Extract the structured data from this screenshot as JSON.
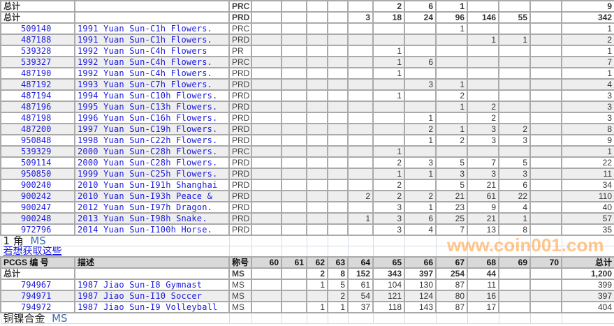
{
  "top_totals": [
    {
      "label": "总计",
      "grade": "PRC",
      "values": [
        "",
        "",
        "",
        "",
        "",
        "2",
        "6",
        "1",
        "",
        "",
        "",
        "9"
      ]
    },
    {
      "label": "总计",
      "grade": "PRD",
      "values": [
        "",
        "",
        "",
        "",
        "3",
        "18",
        "24",
        "96",
        "146",
        "55",
        "",
        "342"
      ]
    }
  ],
  "top_rows": [
    {
      "id": "509140",
      "desc": "1991 Yuan Sun-C1h Flowers.",
      "grade": "PRC",
      "values": [
        "",
        "",
        "",
        "",
        "",
        "",
        "",
        "1",
        "",
        "",
        "",
        "1"
      ]
    },
    {
      "id": "487188",
      "desc": "1991 Yuan Sun-C1h Flowers.",
      "grade": "PRD",
      "values": [
        "",
        "",
        "",
        "",
        "",
        "",
        "",
        "",
        "1",
        "1",
        "",
        "2"
      ]
    },
    {
      "id": "539328",
      "desc": "1992 Yuan Sun-C4h Flowers",
      "grade": "PR",
      "values": [
        "",
        "",
        "",
        "",
        "",
        "1",
        "",
        "",
        "",
        "",
        "",
        "1"
      ]
    },
    {
      "id": "539327",
      "desc": "1992 Yuan Sun-C4h Flowers.",
      "grade": "PRC",
      "values": [
        "",
        "",
        "",
        "",
        "",
        "1",
        "6",
        "",
        "",
        "",
        "",
        "7"
      ]
    },
    {
      "id": "487190",
      "desc": "1992 Yuan Sun-C4h Flowers.",
      "grade": "PRD",
      "values": [
        "",
        "",
        "",
        "",
        "",
        "1",
        "",
        "",
        "",
        "",
        "",
        "1"
      ]
    },
    {
      "id": "487192",
      "desc": "1993 Yuan Sun-C7h Flowers.",
      "grade": "PRD",
      "values": [
        "",
        "",
        "",
        "",
        "",
        "",
        "3",
        "1",
        "",
        "",
        "",
        "4"
      ]
    },
    {
      "id": "487194",
      "desc": "1994 Yuan Sun-C10h Flowers.",
      "grade": "PRD",
      "values": [
        "",
        "",
        "",
        "",
        "",
        "1",
        "",
        "2",
        "",
        "",
        "",
        "3"
      ]
    },
    {
      "id": "487196",
      "desc": "1995 Yuan Sun-C13h Flowers.",
      "grade": "PRD",
      "values": [
        "",
        "",
        "",
        "",
        "",
        "",
        "",
        "1",
        "2",
        "",
        "",
        "3"
      ]
    },
    {
      "id": "487198",
      "desc": "1996 Yuan Sun-C16h Flowers.",
      "grade": "PRD",
      "values": [
        "",
        "",
        "",
        "",
        "",
        "",
        "1",
        "",
        "2",
        "",
        "",
        "3"
      ]
    },
    {
      "id": "487200",
      "desc": "1997 Yuan Sun-C19h Flowers.",
      "grade": "PRD",
      "values": [
        "",
        "",
        "",
        "",
        "",
        "",
        "2",
        "1",
        "3",
        "2",
        "",
        "8"
      ]
    },
    {
      "id": "950848",
      "desc": "1998 Yuan Sun-C22h Flowers.",
      "grade": "PRD",
      "values": [
        "",
        "",
        "",
        "",
        "",
        "",
        "1",
        "2",
        "3",
        "3",
        "",
        "9"
      ]
    },
    {
      "id": "539329",
      "desc": "2000 Yuan Sun-C28h Flowers.",
      "grade": "PRC",
      "values": [
        "",
        "",
        "",
        "",
        "",
        "1",
        "",
        "",
        "",
        "",
        "",
        "1"
      ]
    },
    {
      "id": "509114",
      "desc": "2000 Yuan Sun-C28h Flowers.",
      "grade": "PRD",
      "values": [
        "",
        "",
        "",
        "",
        "",
        "2",
        "3",
        "5",
        "7",
        "5",
        "",
        "22"
      ]
    },
    {
      "id": "950850",
      "desc": "1999 Yuan Sun-C25h Flowers.",
      "grade": "PRD",
      "values": [
        "",
        "",
        "",
        "",
        "",
        "1",
        "1",
        "3",
        "3",
        "3",
        "",
        "11"
      ]
    },
    {
      "id": "900240",
      "desc": "2010 Yuan Sun-I91h Shanghai",
      "grade": "PRD",
      "values": [
        "",
        "",
        "",
        "",
        "",
        "2",
        "",
        "5",
        "21",
        "6",
        "",
        "34"
      ]
    },
    {
      "id": "900242",
      "desc": "2010 Yuan Sun-I93h Peace &",
      "grade": "PRD",
      "values": [
        "",
        "",
        "",
        "",
        "2",
        "2",
        "2",
        "21",
        "61",
        "22",
        "",
        "110"
      ]
    },
    {
      "id": "900247",
      "desc": "2012 Yuan Sun-I97h Dragon.",
      "grade": "PRD",
      "values": [
        "",
        "",
        "",
        "",
        "",
        "3",
        "1",
        "23",
        "9",
        "4",
        "",
        "40"
      ]
    },
    {
      "id": "900248",
      "desc": "2013 Yuan Sun-I98h Snake.",
      "grade": "PRD",
      "values": [
        "",
        "",
        "",
        "",
        "1",
        "3",
        "6",
        "25",
        "21",
        "1",
        "",
        "57"
      ]
    },
    {
      "id": "972796",
      "desc": "2014 Yuan Sun-I100h Horse.",
      "grade": "PRD",
      "values": [
        "",
        "",
        "",
        "",
        "",
        "3",
        "4",
        "7",
        "13",
        "8",
        "",
        "35"
      ]
    }
  ],
  "section": {
    "title": "1 角",
    "grade": "MS",
    "link": "若想获取这些"
  },
  "header": {
    "id": "PCGS 编 号",
    "desc": "描述",
    "grade": "称号",
    "cols": [
      "60",
      "61",
      "62",
      "63",
      "64",
      "65",
      "66",
      "67",
      "68",
      "69",
      "70",
      "总计"
    ]
  },
  "bottom_total": {
    "label": "总计",
    "grade": "MS",
    "values": [
      "",
      "",
      "2",
      "8",
      "152",
      "343",
      "397",
      "254",
      "44",
      "",
      "",
      "1,200"
    ]
  },
  "bottom_rows": [
    {
      "id": "794967",
      "desc": "1987 Jiao Sun-I8 Gymnast",
      "grade": "MS",
      "values": [
        "",
        "",
        "1",
        "5",
        "61",
        "104",
        "130",
        "87",
        "11",
        "",
        "",
        "399"
      ]
    },
    {
      "id": "794971",
      "desc": "1987 Jiao Sun-I10 Soccer",
      "grade": "MS",
      "values": [
        "",
        "",
        "",
        "2",
        "54",
        "121",
        "124",
        "80",
        "16",
        "",
        "",
        "397"
      ]
    },
    {
      "id": "794972",
      "desc": "1987 Jiao Sun-I9 Volleyball",
      "grade": "MS",
      "values": [
        "",
        "",
        "1",
        "1",
        "37",
        "118",
        "143",
        "87",
        "17",
        "",
        "",
        "404"
      ]
    }
  ],
  "next_section": {
    "title": "铜镍合金",
    "grade": "MS"
  },
  "watermark": "www.coin001.com"
}
